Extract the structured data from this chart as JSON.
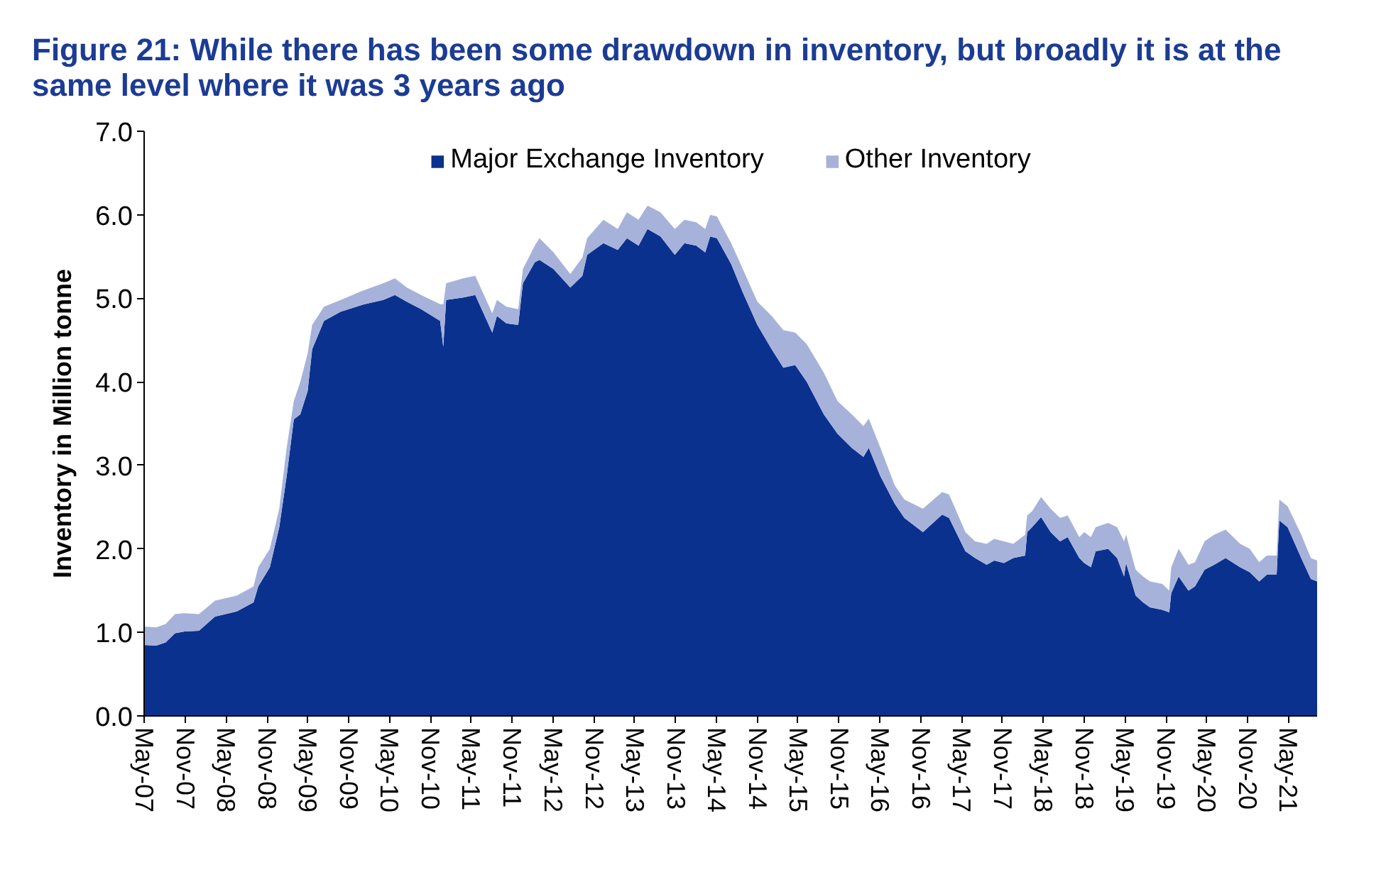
{
  "chart_data": {
    "type": "area",
    "title": "Figure 21: While there has been some drawdown in inventory, but broadly it is at the same level where it was 3 years ago",
    "ylabel": "Inventory in Million tonne",
    "stacked": true,
    "legend": "top",
    "x": [
      "2007-05-01",
      "2007-06-23",
      "2007-08-05",
      "2007-09-16",
      "2007-10-28",
      "2008-01-01",
      "2008-03-13",
      "2008-06-18",
      "2008-09-01",
      "2008-09-22",
      "2008-11-13",
      "2008-12-25",
      "2009-01-27",
      "2009-02-28",
      "2009-03-29",
      "2009-05-01",
      "2009-05-21",
      "2009-07-13",
      "2009-09-26",
      "2010-01-10",
      "2010-04-04",
      "2010-05-26",
      "2010-07-18",
      "2010-09-20",
      "2010-12-14",
      "2010-12-28",
      "2011-01-10",
      "2011-03-28",
      "2011-05-20",
      "2011-08-04",
      "2011-08-25",
      "2011-10-06",
      "2011-11-28",
      "2011-12-19",
      "2012-02-10",
      "2012-03-02",
      "2012-05-04",
      "2012-07-18",
      "2012-09-10",
      "2012-10-01",
      "2012-12-13",
      "2013-02-15",
      "2013-03-28",
      "2013-05-19",
      "2013-06-28",
      "2013-08-25",
      "2013-10-28",
      "2013-12-10",
      "2014-02-01",
      "2014-03-13",
      "2014-04-04",
      "2014-05-04",
      "2014-07-07",
      "2014-08-28",
      "2014-11-01",
      "2015-01-04",
      "2015-02-25",
      "2015-04-19",
      "2015-06-10",
      "2015-08-25",
      "2015-10-25",
      "2015-12-28",
      "2016-02-18",
      "2016-03-13",
      "2016-05-04",
      "2016-07-07",
      "2016-08-19",
      "2016-11-10",
      "2017-02-04",
      "2017-03-07",
      "2017-05-19",
      "2017-07-01",
      "2017-08-22",
      "2017-09-25",
      "2017-11-07",
      "2017-12-19",
      "2018-02-10",
      "2018-02-19",
      "2018-03-13",
      "2018-04-22",
      "2018-06-04",
      "2018-07-16",
      "2018-08-19",
      "2018-10-10",
      "2018-11-01",
      "2018-12-01",
      "2018-12-22",
      "2019-02-16",
      "2019-03-28",
      "2019-04-28",
      "2019-05-07",
      "2019-06-19",
      "2019-07-22",
      "2019-08-22",
      "2019-10-16",
      "2019-11-16",
      "2019-11-25",
      "2019-12-28",
      "2020-02-10",
      "2020-03-10",
      "2020-04-22",
      "2020-06-04",
      "2020-07-25",
      "2020-09-28",
      "2020-11-10",
      "2020-12-22",
      "2021-01-25",
      "2021-03-10",
      "2021-03-22",
      "2021-04-28",
      "2021-06-28",
      "2021-08-10",
      "2021-09-07"
    ],
    "series": [
      {
        "name": "Major Exchange Inventory",
        "color": "#0b318f",
        "values": [
          0.85,
          0.84,
          0.88,
          0.99,
          1.01,
          1.02,
          1.19,
          1.25,
          1.36,
          1.55,
          1.78,
          2.26,
          2.87,
          3.55,
          3.61,
          3.89,
          4.39,
          4.73,
          4.84,
          4.93,
          4.98,
          5.04,
          4.96,
          4.87,
          4.73,
          4.42,
          4.98,
          5.01,
          5.04,
          4.59,
          4.79,
          4.7,
          4.68,
          5.18,
          5.43,
          5.46,
          5.35,
          5.13,
          5.27,
          5.52,
          5.66,
          5.58,
          5.72,
          5.63,
          5.83,
          5.74,
          5.52,
          5.66,
          5.63,
          5.55,
          5.74,
          5.72,
          5.41,
          5.07,
          4.68,
          4.39,
          4.17,
          4.2,
          4.0,
          3.61,
          3.38,
          3.21,
          3.1,
          3.21,
          2.87,
          2.54,
          2.37,
          2.2,
          2.41,
          2.37,
          1.97,
          1.89,
          1.81,
          1.86,
          1.83,
          1.89,
          1.92,
          2.2,
          2.26,
          2.38,
          2.2,
          2.09,
          2.14,
          1.89,
          1.83,
          1.78,
          1.97,
          2.0,
          1.89,
          1.67,
          1.83,
          1.44,
          1.36,
          1.3,
          1.27,
          1.24,
          1.47,
          1.67,
          1.5,
          1.55,
          1.75,
          1.81,
          1.89,
          1.78,
          1.72,
          1.61,
          1.69,
          1.69,
          2.34,
          2.26,
          1.89,
          1.64,
          1.61
        ]
      },
      {
        "name": "Other Inventory",
        "color": "#a6b2d9",
        "values": [
          0.22,
          0.22,
          0.22,
          0.23,
          0.22,
          0.2,
          0.19,
          0.19,
          0.19,
          0.23,
          0.22,
          0.22,
          0.34,
          0.22,
          0.39,
          0.45,
          0.29,
          0.17,
          0.14,
          0.17,
          0.2,
          0.2,
          0.17,
          0.17,
          0.2,
          0.51,
          0.2,
          0.23,
          0.23,
          0.23,
          0.19,
          0.2,
          0.19,
          0.17,
          0.2,
          0.26,
          0.2,
          0.16,
          0.22,
          0.2,
          0.28,
          0.25,
          0.31,
          0.31,
          0.28,
          0.29,
          0.31,
          0.28,
          0.28,
          0.28,
          0.26,
          0.26,
          0.25,
          0.28,
          0.28,
          0.4,
          0.45,
          0.39,
          0.45,
          0.5,
          0.39,
          0.4,
          0.37,
          0.35,
          0.34,
          0.22,
          0.22,
          0.28,
          0.27,
          0.28,
          0.23,
          0.2,
          0.25,
          0.26,
          0.26,
          0.17,
          0.25,
          0.2,
          0.19,
          0.24,
          0.28,
          0.28,
          0.26,
          0.25,
          0.37,
          0.36,
          0.29,
          0.31,
          0.37,
          0.42,
          0.34,
          0.31,
          0.31,
          0.31,
          0.31,
          0.26,
          0.31,
          0.33,
          0.31,
          0.29,
          0.34,
          0.36,
          0.34,
          0.28,
          0.28,
          0.23,
          0.23,
          0.23,
          0.25,
          0.25,
          0.28,
          0.25,
          0.25
        ]
      }
    ],
    "xlim": [
      "2007-05-01",
      "2021-09-07"
    ],
    "xticks": [
      {
        "value": "2007-05-01",
        "label": "May-07"
      },
      {
        "value": "2007-11-01",
        "label": "Nov-07"
      },
      {
        "value": "2008-05-01",
        "label": "May-08"
      },
      {
        "value": "2008-11-01",
        "label": "Nov-08"
      },
      {
        "value": "2009-05-01",
        "label": "May-09"
      },
      {
        "value": "2009-11-01",
        "label": "Nov-09"
      },
      {
        "value": "2010-05-01",
        "label": "May-10"
      },
      {
        "value": "2010-11-01",
        "label": "Nov-10"
      },
      {
        "value": "2011-05-01",
        "label": "May-11"
      },
      {
        "value": "2011-11-01",
        "label": "Nov-11"
      },
      {
        "value": "2012-05-01",
        "label": "May-12"
      },
      {
        "value": "2012-11-01",
        "label": "Nov-12"
      },
      {
        "value": "2013-05-01",
        "label": "May-13"
      },
      {
        "value": "2013-11-01",
        "label": "Nov-13"
      },
      {
        "value": "2014-05-01",
        "label": "May-14"
      },
      {
        "value": "2014-11-01",
        "label": "Nov-14"
      },
      {
        "value": "2015-05-01",
        "label": "May-15"
      },
      {
        "value": "2015-11-01",
        "label": "Nov-15"
      },
      {
        "value": "2016-05-01",
        "label": "May-16"
      },
      {
        "value": "2016-11-01",
        "label": "Nov-16"
      },
      {
        "value": "2017-05-01",
        "label": "May-17"
      },
      {
        "value": "2017-11-01",
        "label": "Nov-17"
      },
      {
        "value": "2018-05-01",
        "label": "May-18"
      },
      {
        "value": "2018-11-01",
        "label": "Nov-18"
      },
      {
        "value": "2019-05-01",
        "label": "May-19"
      },
      {
        "value": "2019-11-01",
        "label": "Nov-19"
      },
      {
        "value": "2020-05-01",
        "label": "May-20"
      },
      {
        "value": "2020-11-01",
        "label": "Nov-20"
      },
      {
        "value": "2021-05-01",
        "label": "May-21"
      }
    ],
    "ylim": [
      0,
      7
    ],
    "yticks": [
      {
        "value": 0,
        "label": "0.0"
      },
      {
        "value": 1,
        "label": "1.0"
      },
      {
        "value": 2,
        "label": "2.0"
      },
      {
        "value": 3,
        "label": "3.0"
      },
      {
        "value": 4,
        "label": "4.0"
      },
      {
        "value": 5,
        "label": "5.0"
      },
      {
        "value": 6,
        "label": "6.0"
      },
      {
        "value": 7,
        "label": "7.0"
      }
    ]
  }
}
